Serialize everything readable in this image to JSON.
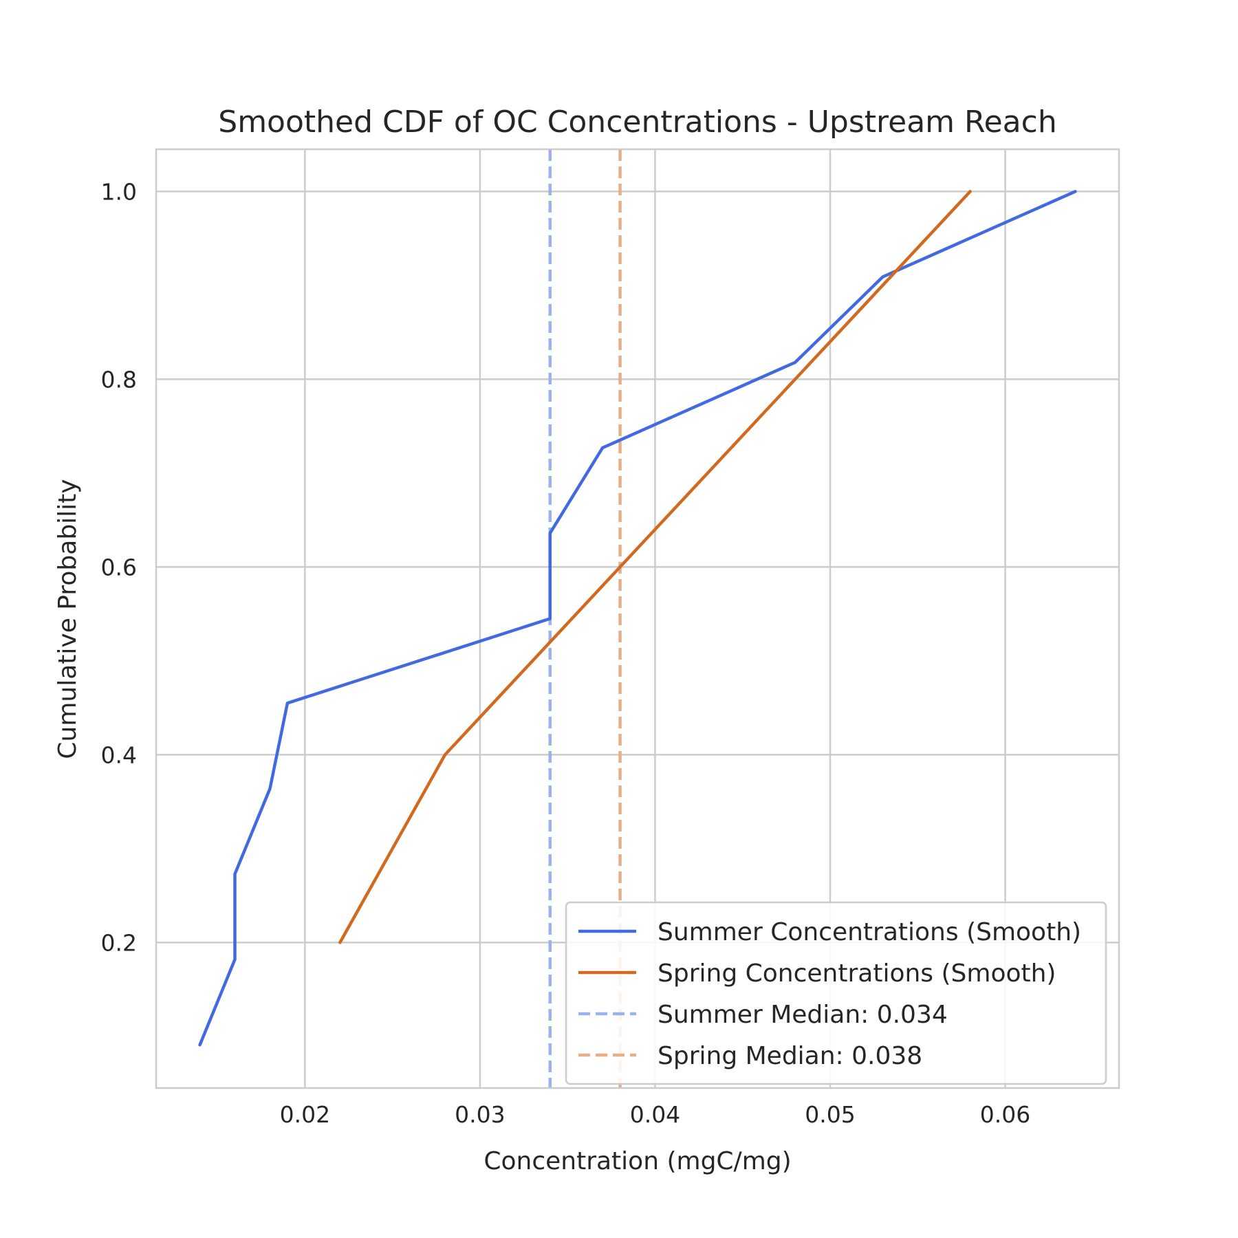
{
  "chart_data": {
    "type": "line",
    "title": "Smoothed CDF of OC Concentrations - Upstream Reach",
    "xlabel": "Concentration (mgC/mg)",
    "ylabel": "Cumulative Probability",
    "xlim": [
      0.0115,
      0.0665
    ],
    "ylim": [
      0.045,
      1.045
    ],
    "xticks": [
      0.02,
      0.03,
      0.04,
      0.05,
      0.06
    ],
    "xtick_labels": [
      "0.02",
      "0.03",
      "0.04",
      "0.05",
      "0.06"
    ],
    "yticks": [
      0.2,
      0.4,
      0.6,
      0.8,
      1.0
    ],
    "ytick_labels": [
      "0.2",
      "0.4",
      "0.6",
      "0.8",
      "1.0"
    ],
    "grid": true,
    "legend_position": "lower-right",
    "series": [
      {
        "name": "Summer Concentrations (Smooth)",
        "color": "#4169e1",
        "style": "solid",
        "x": [
          0.014,
          0.016,
          0.016,
          0.018,
          0.019,
          0.034,
          0.034,
          0.034,
          0.037,
          0.048,
          0.053,
          0.064
        ],
        "y": [
          0.091,
          0.182,
          0.273,
          0.364,
          0.455,
          0.545,
          0.591,
          0.636,
          0.727,
          0.818,
          0.909,
          1.0
        ]
      },
      {
        "name": "Spring Concentrations (Smooth)",
        "color": "#d2691e",
        "style": "solid",
        "x": [
          0.022,
          0.028,
          0.038,
          0.048,
          0.058
        ],
        "y": [
          0.2,
          0.4,
          0.6,
          0.8,
          1.0
        ]
      }
    ],
    "reference_lines": [
      {
        "name": "Summer Median: 0.034",
        "x": 0.034,
        "color": "#9cb2ee",
        "style": "dashed"
      },
      {
        "name": "Spring Median: 0.038",
        "x": 0.038,
        "color": "#e7ae87",
        "style": "dashed"
      }
    ]
  }
}
